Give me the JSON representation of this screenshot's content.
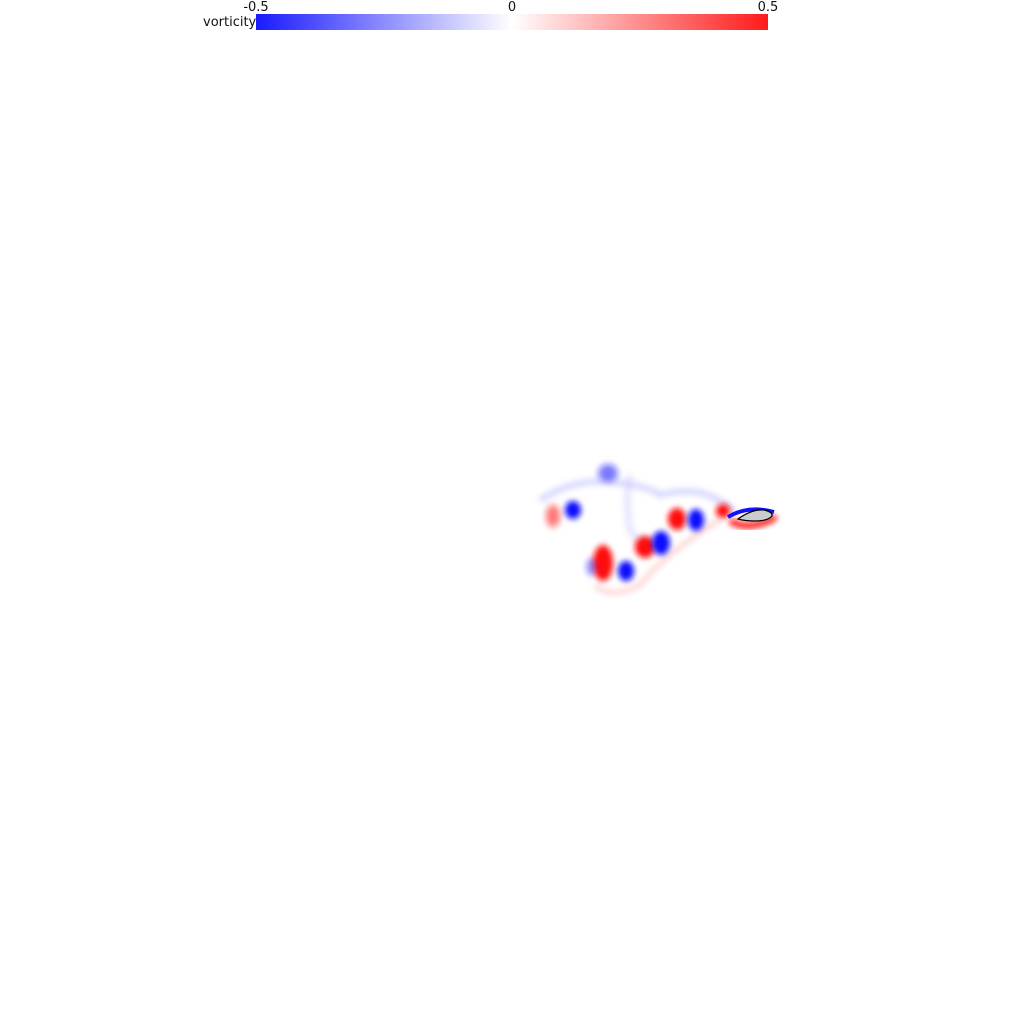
{
  "colorbar": {
    "label": "vorticity",
    "tick_min": "-0.5",
    "tick_mid": "0",
    "tick_max": "0.5",
    "color_negative": "#1a1aff",
    "color_zero": "#ffffff",
    "color_positive": "#ff1a1a"
  },
  "field": {
    "object": "airfoil",
    "object_fill": "#cccccc",
    "object_outline": "#000000"
  }
}
